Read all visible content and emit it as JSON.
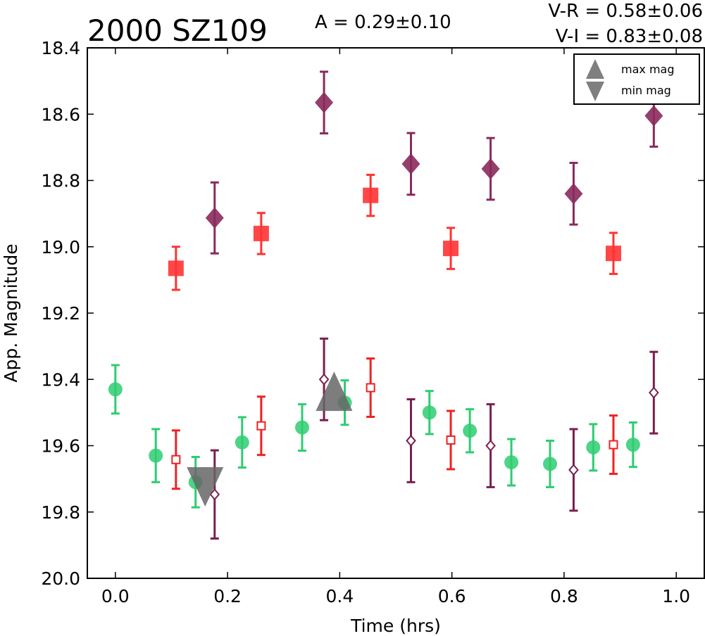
{
  "chart_data": {
    "type": "scatter",
    "title": "2000 SZ109",
    "annotations": {
      "amplitude": "A  = 0.29±0.10",
      "color_vr": "V-R = 0.58±0.06",
      "color_vi": "V-I  = 0.83±0.08"
    },
    "xlabel": "Time (hrs)",
    "ylabel": "App. Magnitude",
    "xlim": [
      -0.05,
      1.05
    ],
    "ylim": [
      20.0,
      18.4
    ],
    "y_inverted": true,
    "x_ticks": [
      "0.0",
      "0.2",
      "0.4",
      "0.6",
      "0.8",
      "1.0"
    ],
    "y_ticks": [
      "18.4",
      "18.6",
      "18.8",
      "19.0",
      "19.2",
      "19.4",
      "19.6",
      "19.8",
      "20.0"
    ],
    "legend": {
      "position": "top-right",
      "entries": [
        "max mag",
        "min mag"
      ]
    },
    "series": [
      {
        "marker": "circle",
        "color": "#2ecc71",
        "points": [
          {
            "x": 0.0,
            "y": 19.43,
            "err": 0.073
          },
          {
            "x": 0.072,
            "y": 19.63,
            "err": 0.08
          },
          {
            "x": 0.143,
            "y": 19.71,
            "err": 0.076
          },
          {
            "x": 0.226,
            "y": 19.59,
            "err": 0.076
          },
          {
            "x": 0.333,
            "y": 19.545,
            "err": 0.07
          },
          {
            "x": 0.409,
            "y": 19.47,
            "err": 0.067
          },
          {
            "x": 0.56,
            "y": 19.5,
            "err": 0.065
          },
          {
            "x": 0.632,
            "y": 19.555,
            "err": 0.065
          },
          {
            "x": 0.706,
            "y": 19.65,
            "err": 0.07
          },
          {
            "x": 0.775,
            "y": 19.655,
            "err": 0.07
          },
          {
            "x": 0.852,
            "y": 19.605,
            "err": 0.07
          },
          {
            "x": 0.923,
            "y": 19.597,
            "err": 0.067
          }
        ]
      },
      {
        "marker": "square-filled",
        "color": "#ff3333",
        "points": [
          {
            "x": 0.108,
            "y": 19.065,
            "err": 0.065
          },
          {
            "x": 0.26,
            "y": 18.96,
            "err": 0.062
          },
          {
            "x": 0.455,
            "y": 18.845,
            "err": 0.062
          },
          {
            "x": 0.598,
            "y": 19.005,
            "err": 0.062
          },
          {
            "x": 0.888,
            "y": 19.02,
            "err": 0.062
          }
        ]
      },
      {
        "marker": "square-open",
        "color": "#ee2222",
        "points": [
          {
            "x": 0.108,
            "y": 19.642,
            "err": 0.088
          },
          {
            "x": 0.26,
            "y": 19.54,
            "err": 0.088
          },
          {
            "x": 0.455,
            "y": 19.425,
            "err": 0.088
          },
          {
            "x": 0.598,
            "y": 19.583,
            "err": 0.088
          },
          {
            "x": 0.888,
            "y": 19.597,
            "err": 0.088
          }
        ]
      },
      {
        "marker": "diamond-filled",
        "color": "#8a2a5c",
        "points": [
          {
            "x": 0.177,
            "y": 18.913,
            "err": 0.107
          },
          {
            "x": 0.372,
            "y": 18.565,
            "err": 0.093
          },
          {
            "x": 0.527,
            "y": 18.75,
            "err": 0.093
          },
          {
            "x": 0.669,
            "y": 18.765,
            "err": 0.093
          },
          {
            "x": 0.817,
            "y": 18.84,
            "err": 0.093
          },
          {
            "x": 0.96,
            "y": 18.605,
            "err": 0.093
          }
        ]
      },
      {
        "marker": "diamond-open",
        "color": "#7a1f4f",
        "points": [
          {
            "x": 0.177,
            "y": 19.747,
            "err": 0.133
          },
          {
            "x": 0.372,
            "y": 19.4,
            "err": 0.123
          },
          {
            "x": 0.527,
            "y": 19.585,
            "err": 0.125
          },
          {
            "x": 0.669,
            "y": 19.6,
            "err": 0.125
          },
          {
            "x": 0.817,
            "y": 19.673,
            "err": 0.123
          },
          {
            "x": 0.96,
            "y": 19.44,
            "err": 0.123
          }
        ]
      }
    ],
    "extrema": [
      {
        "label": "max mag",
        "x": 0.39,
        "y": 19.44
      },
      {
        "label": "min mag",
        "x": 0.16,
        "y": 19.72
      }
    ]
  }
}
